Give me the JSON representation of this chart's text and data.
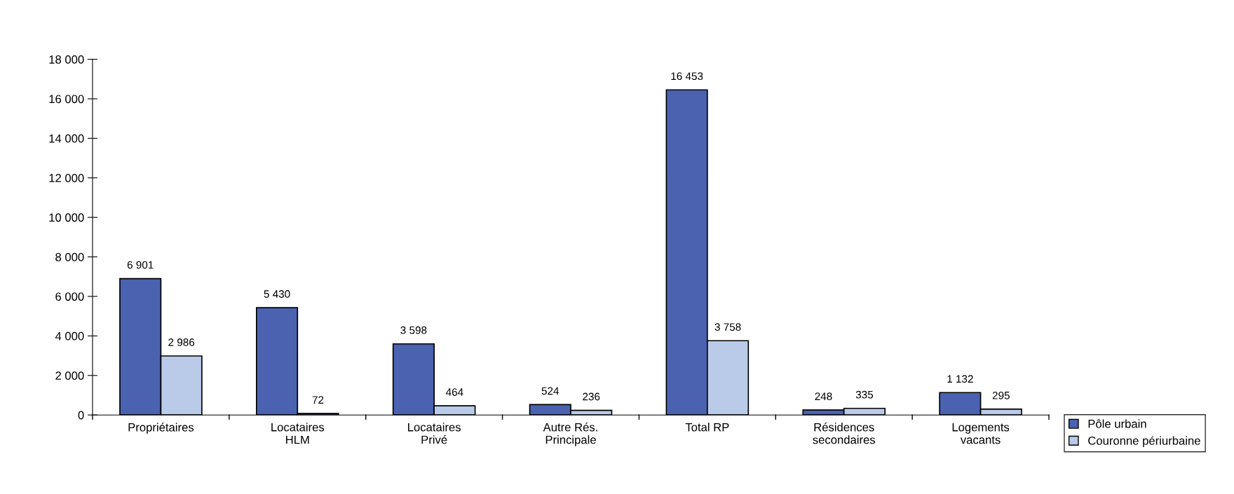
{
  "chart_data": {
    "type": "bar",
    "categories": [
      "Propriétaires",
      "Locataires\nHLM",
      "Locataires\nPrivé",
      "Autre Rés.\nPrincipale",
      "Total RP",
      "Résidences\nsecondaires",
      "Logements\nvacants"
    ],
    "series": [
      {
        "name": "Pôle urbain",
        "color": "#4a62b0",
        "values": [
          6901,
          5430,
          3598,
          524,
          16453,
          248,
          1132
        ],
        "value_labels": [
          "6 901",
          "5 430",
          "3 598",
          "524",
          "16 453",
          "248",
          "1 132"
        ]
      },
      {
        "name": "Couronne périurbaine",
        "color": "#b9cbe8",
        "values": [
          2986,
          72,
          464,
          236,
          3758,
          335,
          295
        ],
        "value_labels": [
          "2 986",
          "72",
          "464",
          "236",
          "3 758",
          "335",
          "295"
        ]
      }
    ],
    "ylim": [
      0,
      18000
    ],
    "yticks": [
      {
        "value": 0,
        "label": "0"
      },
      {
        "value": 2000,
        "label": "2 000"
      },
      {
        "value": 4000,
        "label": "4 000"
      },
      {
        "value": 6000,
        "label": "6 000"
      },
      {
        "value": 8000,
        "label": "8 000"
      },
      {
        "value": 10000,
        "label": "10 000"
      },
      {
        "value": 12000,
        "label": "12 000"
      },
      {
        "value": 14000,
        "label": "14 000"
      },
      {
        "value": 16000,
        "label": "16 000"
      },
      {
        "value": 18000,
        "label": "18 000"
      }
    ],
    "grid": false,
    "legend": "bottom right"
  }
}
